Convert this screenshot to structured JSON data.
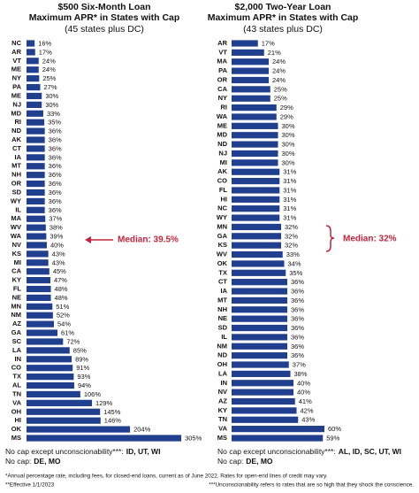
{
  "chart_data": [
    {
      "type": "bar",
      "orientation": "horizontal",
      "title": "$500 Six-Month Loan",
      "subtitle": "Maximum APR* in States with Cap",
      "note": "(45 states plus DC)",
      "color": "#203f8e",
      "categories": [
        "NC",
        "AR",
        "VT",
        "ME",
        "NY",
        "PA",
        "ME",
        "NJ",
        "MD",
        "RI",
        "ND",
        "AK",
        "CT",
        "IA",
        "MT",
        "NH",
        "OR",
        "SD",
        "WY",
        "IL",
        "MA",
        "WV",
        "WA",
        "NV",
        "KS",
        "MI",
        "CA",
        "KY",
        "FL",
        "NE",
        "MN",
        "NM",
        "AZ",
        "GA",
        "SC",
        "LA",
        "IN",
        "CO",
        "TX",
        "AL",
        "TN",
        "VA",
        "OH",
        "HI",
        "OK",
        "MS"
      ],
      "values": [
        16,
        17,
        24,
        24,
        25,
        27,
        30,
        30,
        33,
        35,
        36,
        36,
        36,
        36,
        36,
        36,
        36,
        36,
        36,
        36,
        37,
        38,
        39,
        40,
        43,
        43,
        45,
        47,
        48,
        48,
        51,
        52,
        54,
        61,
        72,
        85,
        89,
        91,
        93,
        94,
        106,
        129,
        145,
        146,
        204,
        305
      ],
      "value_labels": [
        "16%",
        "17%",
        "24%",
        "24%",
        "25%",
        "27%",
        "30%",
        "30%",
        "33%",
        "35%",
        "36%",
        "36%",
        "36%",
        "36%",
        "36%",
        "36%",
        "36%",
        "36%",
        "36%",
        "36%",
        "37%",
        "38%",
        "39%",
        "40%",
        "43%",
        "43%",
        "45%",
        "47%",
        "48%",
        "48%",
        "51%",
        "52%",
        "54%",
        "61%",
        "72%",
        "85%",
        "89%",
        "91%",
        "93%",
        "94%",
        "106%",
        "129%",
        "145%",
        "146%",
        "204%",
        "305%"
      ],
      "annotation": "Median: 39.5%",
      "footnotes": [
        {
          "label": "No cap except unconscionability***:",
          "states": "ID, UT, WI"
        },
        {
          "label": "No cap:",
          "states": "DE, MO"
        }
      ]
    },
    {
      "type": "bar",
      "orientation": "horizontal",
      "title": "$2,000 Two-Year Loan",
      "subtitle": "Maximum APR* in States with Cap",
      "note": "(43 states plus DC)",
      "color": "#203f8e",
      "categories": [
        "AR",
        "VT",
        "MA",
        "PA",
        "OR",
        "CA",
        "NY",
        "RI",
        "WA",
        "ME",
        "MD",
        "ND",
        "NJ",
        "MI",
        "AK",
        "CO",
        "FL",
        "HI",
        "NC",
        "WY",
        "MN",
        "GA",
        "KS",
        "WV",
        "OK",
        "TX",
        "CT",
        "IA",
        "MT",
        "NH",
        "NE",
        "SD",
        "IL",
        "NM",
        "ND",
        "OH",
        "LA",
        "IN",
        "NV",
        "AZ",
        "KY",
        "TN",
        "VA",
        "MS"
      ],
      "values": [
        17,
        21,
        24,
        24,
        24,
        25,
        25,
        29,
        29,
        30,
        30,
        30,
        30,
        30,
        31,
        31,
        31,
        31,
        31,
        31,
        32,
        32,
        32,
        33,
        34,
        35,
        36,
        36,
        36,
        36,
        36,
        36,
        36,
        36,
        36,
        37,
        38,
        40,
        40,
        41,
        42,
        43,
        60,
        59
      ],
      "value_labels": [
        "17%",
        "21%",
        "24%",
        "24%",
        "24%",
        "25%",
        "25%",
        "29%",
        "29%",
        "30%",
        "30%",
        "30%",
        "30%",
        "30%",
        "31%",
        "31%",
        "31%",
        "31%",
        "31%",
        "31%",
        "32%",
        "32%",
        "32%",
        "33%",
        "34%",
        "35%",
        "36%",
        "36%",
        "36%",
        "36%",
        "36%",
        "36%",
        "36%",
        "36%",
        "36%",
        "37%",
        "38%",
        "40%",
        "40%",
        "41%",
        "42%",
        "43%",
        "60%",
        "59%"
      ],
      "annotation": "Median: 32%",
      "footnotes": [
        {
          "label": "No cap except unconscionability***:",
          "states": "AL, ID, SC, UT, WI"
        },
        {
          "label": "No cap:",
          "states": "DE, MO"
        }
      ]
    }
  ],
  "notes": [
    "*Annual percentage rate, including fees, for closed-end loans, current as of June 2022. Rates for open-end lines of credit may vary.",
    "**Effective 1/1/2023",
    "***Unconscionability refers to rates that are so high that they shock the conscience."
  ]
}
